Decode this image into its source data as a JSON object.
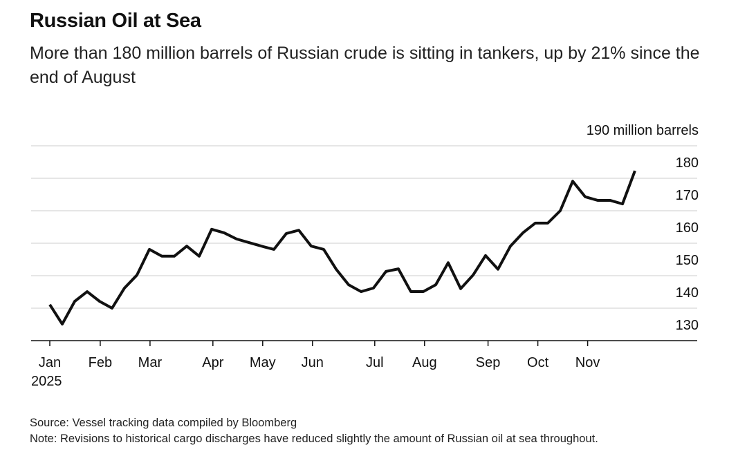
{
  "title": "Russian Oil at Sea",
  "subtitle": "More than 180 million barrels of Russian crude is sitting in tankers, up by 21% since the end of August",
  "footer": {
    "source": "Source: Vessel tracking data compiled by Bloomberg",
    "note": "Note: Revisions to historical cargo discharges have reduced slightly the amount of Russian oil at sea throughout."
  },
  "chart_data": {
    "type": "line",
    "title": "Russian Oil at Sea",
    "ylabel": "190 million barrels",
    "xlabel": "",
    "ylim": [
      130,
      190
    ],
    "yticks": [
      130,
      140,
      150,
      160,
      170,
      180
    ],
    "grid": true,
    "x_unit": "week index since start of Jan 2025",
    "xticks": [
      {
        "label": "Jan",
        "sub": "2025",
        "week": 0
      },
      {
        "label": "Feb",
        "week": 4.05
      },
      {
        "label": "Mar",
        "week": 8.05
      },
      {
        "label": "Apr",
        "week": 13.1
      },
      {
        "label": "May",
        "week": 17.1
      },
      {
        "label": "Jun",
        "week": 21.1
      },
      {
        "label": "Jul",
        "week": 26.1
      },
      {
        "label": "Aug",
        "week": 30.1
      },
      {
        "label": "Sep",
        "week": 35.2
      },
      {
        "label": "Oct",
        "week": 39.2
      },
      {
        "label": "Nov",
        "week": 43.2
      }
    ],
    "series": [
      {
        "name": "Russian crude at sea (million barrels)",
        "color": "#111111",
        "values": [
          141.1,
          135.1,
          142.1,
          145.1,
          142.1,
          140.0,
          146.2,
          150.2,
          158.1,
          156,
          156,
          159.1,
          156,
          164.3,
          163.2,
          161.3,
          160.2,
          159.1,
          158.1,
          163,
          164,
          159.1,
          158.1,
          152,
          147.2,
          145.1,
          146.2,
          151.3,
          152.1,
          145.1,
          145.1,
          147.2,
          154,
          146,
          150.2,
          156.2,
          152,
          159.1,
          163.2,
          166.2,
          166.2,
          170,
          179.1,
          174.3,
          173.2,
          173.2,
          172.1,
          182.3
        ]
      }
    ]
  }
}
